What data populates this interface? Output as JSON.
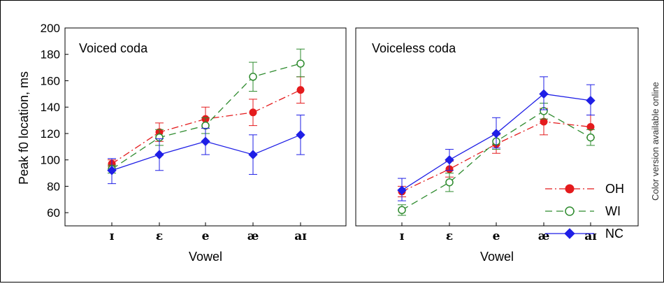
{
  "side_note": "Color version available online",
  "chart_data": {
    "type": "line",
    "ylabel": "Peak f0 location, ms",
    "ylim": [
      50,
      200
    ],
    "yticks": [
      60,
      80,
      100,
      120,
      140,
      160,
      180,
      200
    ],
    "categories": [
      "ɪ",
      "ɛ",
      "e",
      "æ",
      "aɪ"
    ],
    "xlabel": "Vowel",
    "legend": {
      "placement": "bottom-right of right panel",
      "entries": [
        {
          "name": "OH",
          "color": "#e41a1c",
          "marker": "filled circle",
          "line": "dash-dot"
        },
        {
          "name": "WI",
          "color": "#2e8b2e",
          "marker": "open circle",
          "line": "dashed"
        },
        {
          "name": "NC",
          "color": "#1f1fe6",
          "marker": "filled diamond",
          "line": "solid"
        }
      ]
    },
    "panels": [
      {
        "title": "Voiced coda",
        "series": [
          {
            "name": "OH",
            "values": [
              97,
              121,
              131,
              136,
              153
            ],
            "err_low": [
              95,
              114,
              124,
              126,
              143
            ],
            "err_high": [
              100,
              128,
              140,
              146,
              163
            ]
          },
          {
            "name": "WI",
            "values": [
              93,
              117,
              126,
              163,
              173
            ],
            "err_low": [
              90,
              111,
              120,
              152,
              163
            ],
            "err_high": [
              96,
              123,
              132,
              174,
              184
            ]
          },
          {
            "name": "NC",
            "values": [
              92,
              104,
              114,
              104,
              119
            ],
            "err_low": [
              82,
              92,
              104,
              89,
              104
            ],
            "err_high": [
              101,
              116,
              124,
              119,
              134
            ]
          }
        ]
      },
      {
        "title": "Voiceless coda",
        "series": [
          {
            "name": "OH",
            "values": [
              76,
              93,
              112,
              129,
              125
            ],
            "err_low": [
              72,
              87,
              105,
              119,
              117
            ],
            "err_high": [
              80,
              99,
              119,
              139,
              134
            ]
          },
          {
            "name": "WI",
            "values": [
              62,
              83,
              114,
              137,
              117
            ],
            "err_low": [
              58,
              76,
              108,
              131,
              111
            ],
            "err_high": [
              66,
              90,
              120,
              143,
              123
            ]
          },
          {
            "name": "NC",
            "values": [
              77,
              100,
              120,
              150,
              145
            ],
            "err_low": [
              69,
              92,
              109,
              138,
              134
            ],
            "err_high": [
              86,
              108,
              132,
              163,
              157
            ]
          }
        ]
      }
    ]
  }
}
